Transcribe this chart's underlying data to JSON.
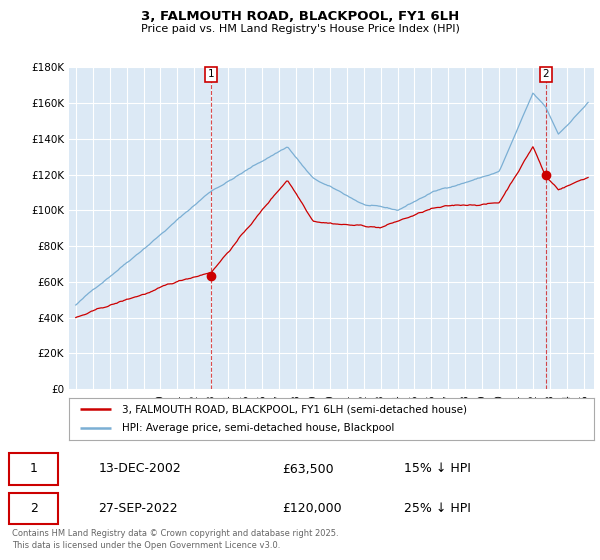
{
  "title": "3, FALMOUTH ROAD, BLACKPOOL, FY1 6LH",
  "subtitle": "Price paid vs. HM Land Registry's House Price Index (HPI)",
  "fig_bg_color": "#ffffff",
  "plot_bg_color": "#dce9f5",
  "hpi_color": "#7bafd4",
  "property_color": "#cc0000",
  "vline_color": "#cc0000",
  "grid_color": "#ffffff",
  "ylim": [
    0,
    180000
  ],
  "yticks": [
    0,
    20000,
    40000,
    60000,
    80000,
    100000,
    120000,
    140000,
    160000,
    180000
  ],
  "ytick_labels": [
    "£0",
    "£20K",
    "£40K",
    "£60K",
    "£80K",
    "£100K",
    "£120K",
    "£140K",
    "£160K",
    "£180K"
  ],
  "sale1_date_label": "13-DEC-2002",
  "sale1_price": 63500,
  "sale1_price_label": "£63,500",
  "sale1_hpi_label": "15% ↓ HPI",
  "sale1_x": 2003.0,
  "sale2_date_label": "27-SEP-2022",
  "sale2_price": 120000,
  "sale2_price_label": "£120,000",
  "sale2_hpi_label": "25% ↓ HPI",
  "sale2_x": 2022.75,
  "legend_line1": "3, FALMOUTH ROAD, BLACKPOOL, FY1 6LH (semi-detached house)",
  "legend_line2": "HPI: Average price, semi-detached house, Blackpool",
  "footer": "Contains HM Land Registry data © Crown copyright and database right 2025.\nThis data is licensed under the Open Government Licence v3.0.",
  "marker1_label": "1",
  "marker2_label": "2"
}
